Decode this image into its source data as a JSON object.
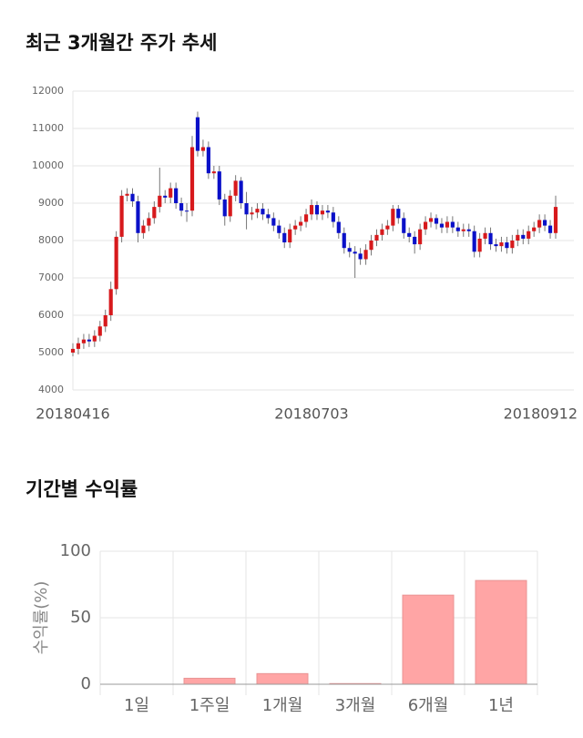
{
  "chart_data": [
    {
      "type": "candlestick",
      "title": "최근 3개월간 주가 추세",
      "categories": [
        "20180416",
        null,
        null,
        null,
        null,
        null,
        null,
        null,
        null,
        null,
        null,
        null,
        null,
        null,
        null,
        null,
        null,
        null,
        null,
        null,
        null,
        null,
        null,
        null,
        null,
        null,
        null,
        null,
        null,
        null,
        null,
        null,
        null,
        null,
        null,
        null,
        null,
        null,
        null,
        null,
        null,
        null,
        null,
        null,
        "20180703",
        null,
        null,
        null,
        null,
        null,
        null,
        null,
        null,
        null,
        null,
        null,
        null,
        null,
        null,
        null,
        null,
        null,
        null,
        null,
        null,
        null,
        null,
        null,
        null,
        null,
        null,
        null,
        null,
        null,
        null,
        null,
        null,
        null,
        null,
        null,
        null,
        null,
        null,
        null,
        null,
        null,
        null,
        null,
        null,
        "20180912"
      ],
      "open": [
        5000,
        5100,
        5250,
        5350,
        5300,
        5450,
        5700,
        6000,
        6700,
        8100,
        9200,
        9250,
        9050,
        8200,
        8400,
        8600,
        8900,
        9200,
        9150,
        9400,
        9000,
        8800,
        8800,
        11300,
        10400,
        10500,
        9800,
        9850,
        9100,
        8650,
        9200,
        9600,
        9000,
        8700,
        8750,
        8850,
        8700,
        8600,
        8400,
        8200,
        7950,
        8300,
        8400,
        8500,
        8700,
        8950,
        8700,
        8800,
        8750,
        8500,
        8200,
        7800,
        7700,
        7650,
        7500,
        7750,
        8000,
        8150,
        8300,
        8400,
        8850,
        8600,
        8200,
        8100,
        7900,
        8300,
        8500,
        8600,
        8450,
        8350,
        8500,
        8350,
        8250,
        8300,
        8250,
        7700,
        8050,
        8200,
        7900,
        7850,
        7950,
        7800,
        8000,
        8150,
        8050,
        8250,
        8350,
        8550,
        8400,
        8200
      ],
      "high": [
        5250,
        5400,
        5500,
        5500,
        5600,
        5850,
        6150,
        6900,
        8250,
        9350,
        9400,
        9400,
        9200,
        8550,
        8750,
        9050,
        9950,
        9350,
        9550,
        9550,
        9150,
        9000,
        10800,
        11450,
        10700,
        10650,
        10000,
        10000,
        9250,
        9350,
        9750,
        9700,
        9300,
        8900,
        9000,
        9000,
        8850,
        8750,
        8550,
        8350,
        8450,
        8550,
        8650,
        8850,
        9100,
        9050,
        8950,
        8950,
        8900,
        8650,
        8350,
        7950,
        7850,
        7800,
        7900,
        8150,
        8300,
        8450,
        8550,
        8950,
        8950,
        8750,
        8350,
        8250,
        8450,
        8650,
        8750,
        8700,
        8600,
        8650,
        8650,
        8500,
        8450,
        8450,
        8400,
        8200,
        8350,
        8350,
        8050,
        8100,
        8100,
        8150,
        8300,
        8300,
        8400,
        8500,
        8700,
        8700,
        8550,
        9200
      ],
      "low": [
        4900,
        4950,
        5100,
        5150,
        5150,
        5300,
        5550,
        5850,
        6550,
        7950,
        9050,
        8900,
        7950,
        8050,
        8250,
        8450,
        8750,
        9000,
        9000,
        8850,
        8650,
        8500,
        8650,
        10250,
        10250,
        9650,
        9650,
        8950,
        8400,
        8500,
        9050,
        8850,
        8300,
        8550,
        8600,
        8550,
        8450,
        8250,
        8050,
        7800,
        7800,
        8150,
        8250,
        8350,
        8550,
        8550,
        8550,
        8600,
        8350,
        8050,
        7650,
        7550,
        7000,
        7350,
        7350,
        7600,
        7850,
        8000,
        8150,
        8250,
        8450,
        8050,
        7950,
        7650,
        7750,
        8150,
        8350,
        8300,
        8200,
        8200,
        8200,
        8100,
        8100,
        8100,
        7550,
        7550,
        7900,
        7750,
        7700,
        7700,
        7650,
        7650,
        7850,
        7900,
        7900,
        8100,
        8200,
        8250,
        8050,
        8050
      ],
      "close": [
        5100,
        5250,
        5350,
        5300,
        5450,
        5700,
        6000,
        6700,
        8100,
        9200,
        9250,
        9050,
        8200,
        8400,
        8600,
        8900,
        9200,
        9150,
        9400,
        9000,
        8800,
        8800,
        10500,
        10400,
        10500,
        9800,
        9850,
        9100,
        8650,
        9200,
        9600,
        9000,
        8700,
        8750,
        8850,
        8700,
        8600,
        8400,
        8200,
        7950,
        8300,
        8400,
        8500,
        8700,
        8950,
        8700,
        8800,
        8750,
        8500,
        8200,
        7800,
        7700,
        7650,
        7500,
        7750,
        8000,
        8150,
        8300,
        8400,
        8850,
        8600,
        8200,
        8100,
        7900,
        8300,
        8500,
        8600,
        8450,
        8350,
        8500,
        8350,
        8250,
        8300,
        8250,
        7700,
        8050,
        8200,
        7900,
        7850,
        7950,
        7800,
        8000,
        8150,
        8050,
        8250,
        8350,
        8550,
        8400,
        8200,
        8900
      ],
      "up_color": "#d7191c",
      "down_color": "#0a10c8",
      "ylim": [
        4000,
        12000
      ],
      "yticks": [
        4000,
        5000,
        6000,
        7000,
        8000,
        9000,
        10000,
        11000,
        12000
      ],
      "grid": true
    },
    {
      "type": "bar",
      "title": "기간별 수익률",
      "ylabel": "수익률(%)",
      "categories": [
        "1일",
        "1주일",
        "1개월",
        "3개월",
        "6개월",
        "1년"
      ],
      "values": [
        0,
        4.5,
        8,
        0.5,
        67,
        78
      ],
      "color": "#ffa5a5",
      "ylim": [
        0,
        100
      ],
      "yticks": [
        0,
        50,
        100
      ],
      "grid": true
    }
  ]
}
